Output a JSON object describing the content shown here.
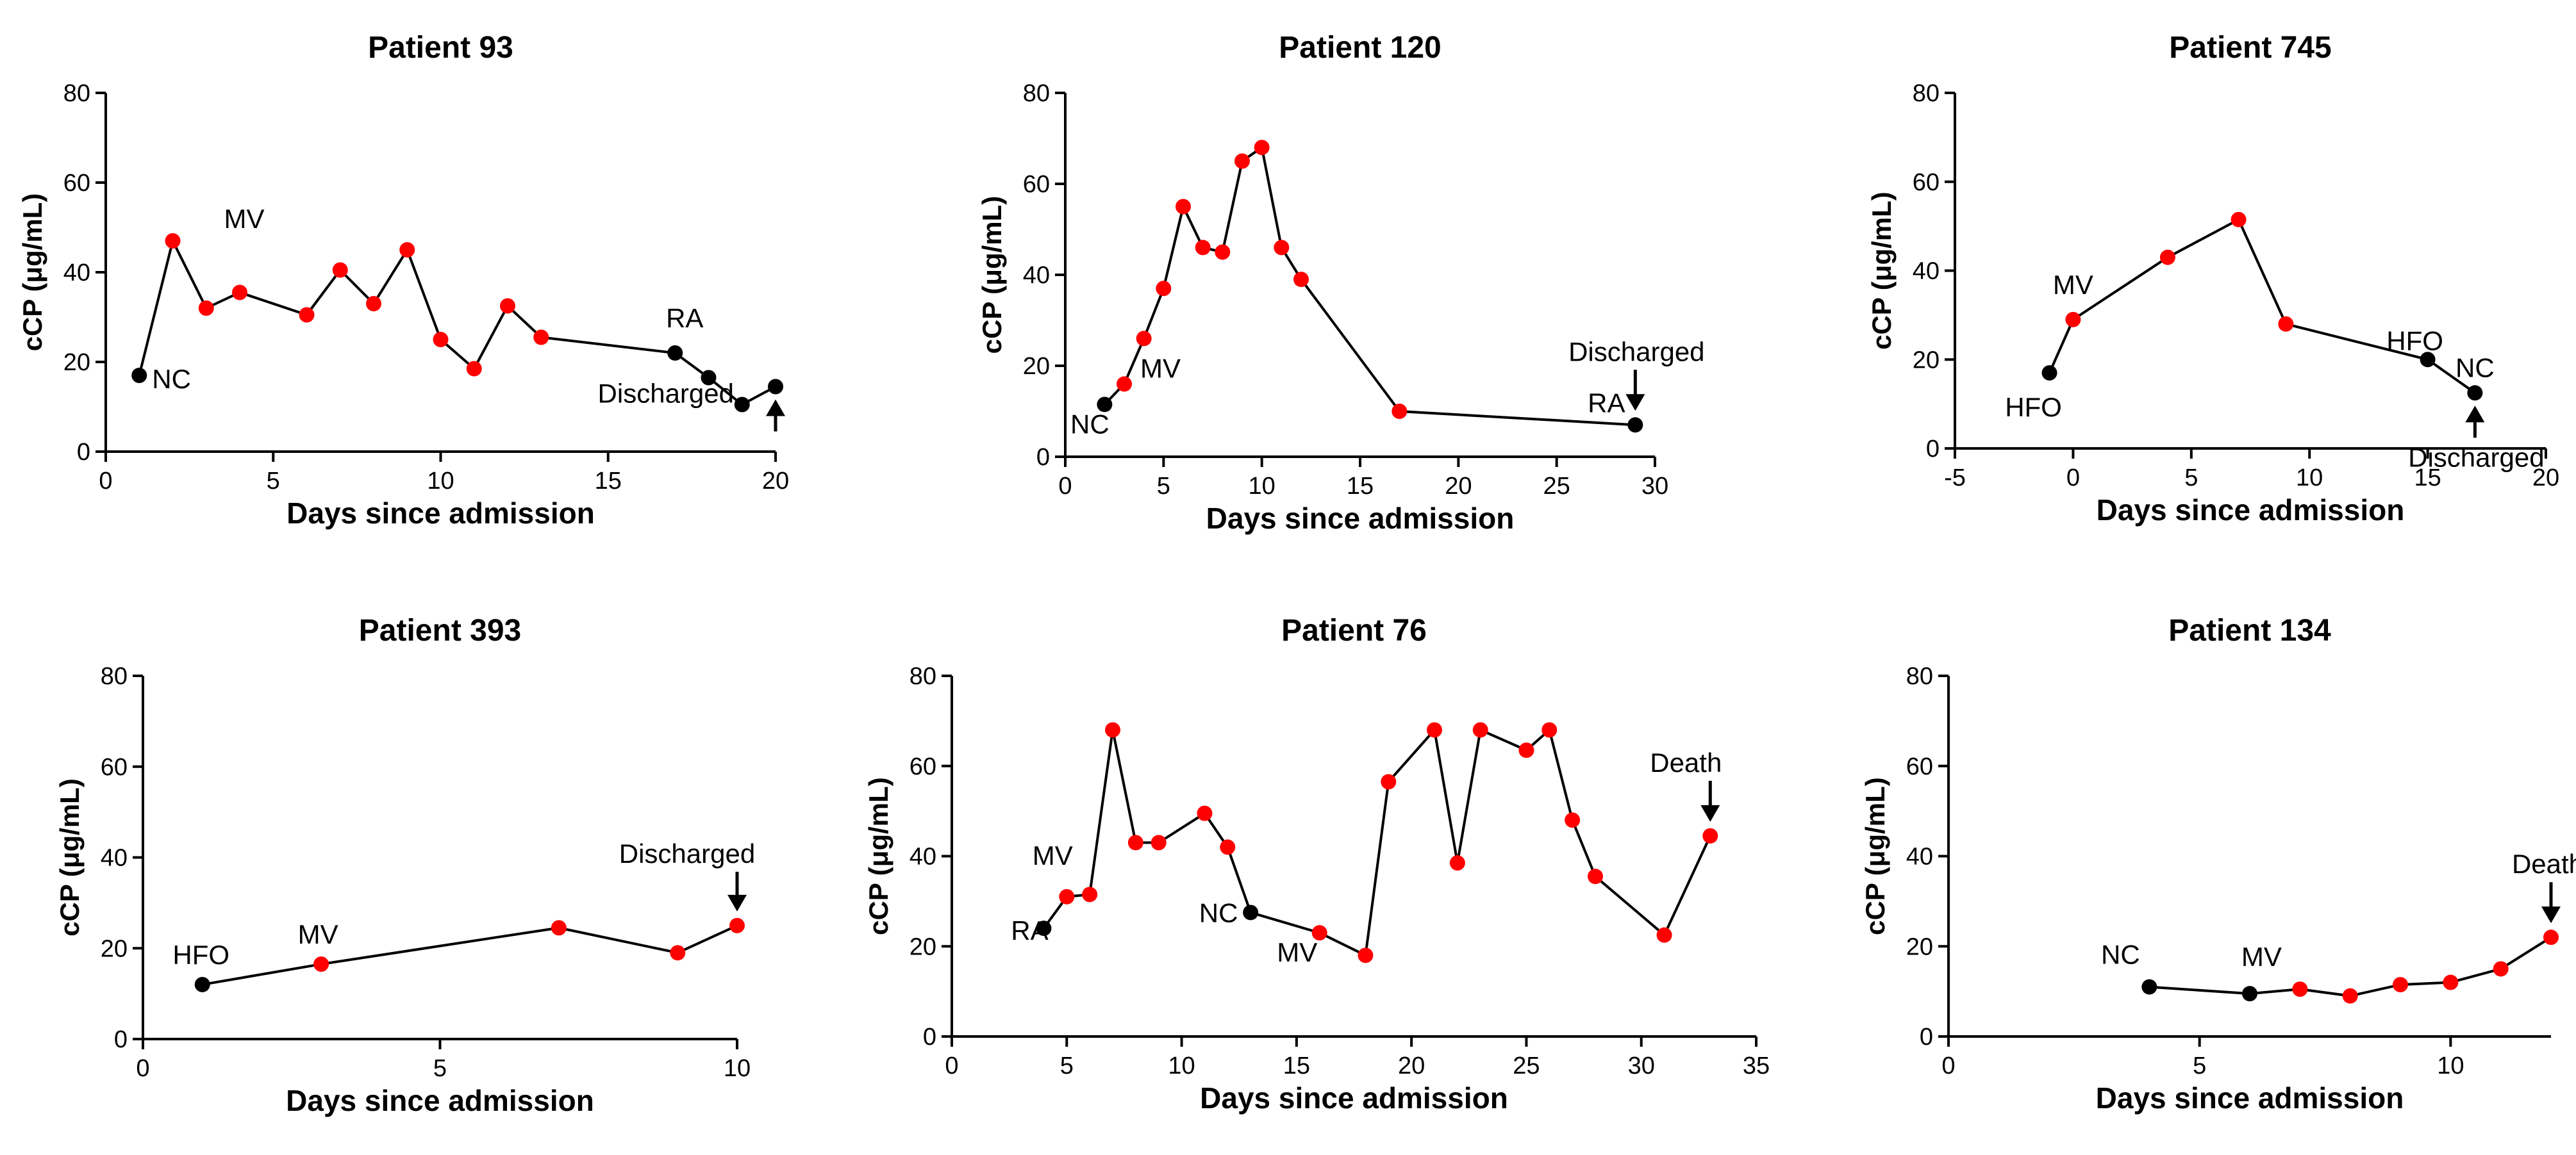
{
  "colors": {
    "axis": "#000000",
    "line": "#000000",
    "marker_red": "#ff0000",
    "marker_black": "#000000"
  },
  "chart_data": [
    {
      "type": "line",
      "title": "Patient 93",
      "xlabel": "Days since admission",
      "ylabel": "cCP (μg/mL)",
      "xlim": [
        0,
        20
      ],
      "ylim": [
        0,
        80
      ],
      "xticks": [
        0,
        5,
        10,
        15,
        20
      ],
      "yticks": [
        0,
        20,
        40,
        60,
        80
      ],
      "points": [
        {
          "x": 1,
          "y": 17,
          "color": "black"
        },
        {
          "x": 2,
          "y": 47,
          "color": "red"
        },
        {
          "x": 3,
          "y": 32,
          "color": "red"
        },
        {
          "x": 4,
          "y": 35.5,
          "color": "red"
        },
        {
          "x": 6,
          "y": 30.5,
          "color": "red"
        },
        {
          "x": 7,
          "y": 40.5,
          "color": "red"
        },
        {
          "x": 8,
          "y": 33,
          "color": "red"
        },
        {
          "x": 9,
          "y": 45,
          "color": "red"
        },
        {
          "x": 10,
          "y": 25,
          "color": "red"
        },
        {
          "x": 11,
          "y": 18.5,
          "color": "red"
        },
        {
          "x": 12,
          "y": 32.5,
          "color": "red"
        },
        {
          "x": 13,
          "y": 25.5,
          "color": "red"
        },
        {
          "x": 17,
          "y": 22,
          "color": "black"
        },
        {
          "x": 18,
          "y": 16.5,
          "color": "black"
        },
        {
          "x": 19,
          "y": 10.5,
          "color": "black"
        },
        {
          "x": 20,
          "y": 14.5,
          "color": "black"
        }
      ],
      "annotations": [
        {
          "text": "NC",
          "x": 1,
          "y": 17
        },
        {
          "text": "MV",
          "x": 2,
          "y": 47
        },
        {
          "text": "RA",
          "x": 17,
          "y": 22
        },
        {
          "text": "Discharged",
          "x": 20,
          "y": 14.5,
          "arrow": "up"
        }
      ]
    },
    {
      "type": "line",
      "title": "Patient 120",
      "xlabel": "Days since admission",
      "ylabel": "cCP (μg/mL)",
      "xlim": [
        0,
        30
      ],
      "ylim": [
        0,
        80
      ],
      "xticks": [
        0,
        5,
        10,
        15,
        20,
        25,
        30
      ],
      "yticks": [
        0,
        20,
        40,
        60,
        80
      ],
      "points": [
        {
          "x": 2,
          "y": 11.5,
          "color": "black"
        },
        {
          "x": 3,
          "y": 16,
          "color": "red"
        },
        {
          "x": 4,
          "y": 26,
          "color": "red"
        },
        {
          "x": 5,
          "y": 37,
          "color": "red"
        },
        {
          "x": 6,
          "y": 55,
          "color": "red"
        },
        {
          "x": 7,
          "y": 46,
          "color": "red"
        },
        {
          "x": 8,
          "y": 45,
          "color": "red"
        },
        {
          "x": 9,
          "y": 65,
          "color": "red"
        },
        {
          "x": 10,
          "y": 68,
          "color": "red"
        },
        {
          "x": 11,
          "y": 46,
          "color": "red"
        },
        {
          "x": 12,
          "y": 39,
          "color": "red"
        },
        {
          "x": 17,
          "y": 10,
          "color": "red"
        },
        {
          "x": 29,
          "y": 7,
          "color": "black"
        }
      ],
      "annotations": [
        {
          "text": "NC",
          "x": 2,
          "y": 11.5
        },
        {
          "text": "MV",
          "x": 3,
          "y": 16
        },
        {
          "text": "RA",
          "x": 29,
          "y": 7
        },
        {
          "text": "Discharged",
          "x": 29,
          "y": 7,
          "arrow": "down"
        }
      ]
    },
    {
      "type": "line",
      "title": "Patient 745",
      "xlabel": "Days since admission",
      "ylabel": "cCP (μg/mL)",
      "xlim": [
        -5,
        20
      ],
      "ylim": [
        0,
        80
      ],
      "xticks": [
        -5,
        0,
        5,
        10,
        15,
        20
      ],
      "yticks": [
        0,
        20,
        40,
        60,
        80
      ],
      "points": [
        {
          "x": -1,
          "y": 17,
          "color": "black"
        },
        {
          "x": 0,
          "y": 29,
          "color": "red"
        },
        {
          "x": 4,
          "y": 43,
          "color": "red"
        },
        {
          "x": 7,
          "y": 51.5,
          "color": "red"
        },
        {
          "x": 9,
          "y": 28,
          "color": "red"
        },
        {
          "x": 15,
          "y": 20,
          "color": "black"
        },
        {
          "x": 17,
          "y": 12.5,
          "color": "black"
        }
      ],
      "annotations": [
        {
          "text": "HFO",
          "x": -1,
          "y": 17
        },
        {
          "text": "MV",
          "x": 0,
          "y": 29
        },
        {
          "text": "HFO",
          "x": 15,
          "y": 20
        },
        {
          "text": "NC",
          "x": 17,
          "y": 12.5
        },
        {
          "text": "Discharged",
          "x": 17,
          "y": 12.5,
          "arrow": "up"
        }
      ]
    },
    {
      "type": "line",
      "title": "Patient 393",
      "xlabel": "Days since admission",
      "ylabel": "cCP (μg/mL)",
      "xlim": [
        0,
        10
      ],
      "ylim": [
        0,
        80
      ],
      "xticks": [
        0,
        5,
        10
      ],
      "yticks": [
        0,
        20,
        40,
        60,
        80
      ],
      "points": [
        {
          "x": 1,
          "y": 12,
          "color": "black"
        },
        {
          "x": 3,
          "y": 16.5,
          "color": "red"
        },
        {
          "x": 7,
          "y": 24.5,
          "color": "red"
        },
        {
          "x": 9,
          "y": 19,
          "color": "red"
        },
        {
          "x": 10,
          "y": 25,
          "color": "red"
        }
      ],
      "annotations": [
        {
          "text": "HFO",
          "x": 1,
          "y": 12
        },
        {
          "text": "MV",
          "x": 3,
          "y": 16.5
        },
        {
          "text": "Discharged",
          "x": 10,
          "y": 25,
          "arrow": "down"
        }
      ]
    },
    {
      "type": "line",
      "title": "Patient 76",
      "xlabel": "Days since admission",
      "ylabel": "cCP (μg/mL)",
      "xlim": [
        0,
        35
      ],
      "ylim": [
        0,
        80
      ],
      "xticks": [
        0,
        5,
        10,
        15,
        20,
        25,
        30,
        35
      ],
      "yticks": [
        0,
        20,
        40,
        60,
        80
      ],
      "points": [
        {
          "x": 4,
          "y": 24,
          "color": "black"
        },
        {
          "x": 5,
          "y": 31,
          "color": "red"
        },
        {
          "x": 6,
          "y": 31.5,
          "color": "red"
        },
        {
          "x": 7,
          "y": 68,
          "color": "red"
        },
        {
          "x": 8,
          "y": 43,
          "color": "red"
        },
        {
          "x": 9,
          "y": 43,
          "color": "red"
        },
        {
          "x": 11,
          "y": 49.5,
          "color": "red"
        },
        {
          "x": 12,
          "y": 42,
          "color": "red"
        },
        {
          "x": 13,
          "y": 27.5,
          "color": "black"
        },
        {
          "x": 16,
          "y": 23,
          "color": "red"
        },
        {
          "x": 18,
          "y": 18,
          "color": "red"
        },
        {
          "x": 19,
          "y": 56.5,
          "color": "red"
        },
        {
          "x": 21,
          "y": 68,
          "color": "red"
        },
        {
          "x": 22,
          "y": 38.5,
          "color": "red"
        },
        {
          "x": 23,
          "y": 68,
          "color": "red"
        },
        {
          "x": 25,
          "y": 63.5,
          "color": "red"
        },
        {
          "x": 26,
          "y": 68,
          "color": "red"
        },
        {
          "x": 27,
          "y": 48,
          "color": "red"
        },
        {
          "x": 28,
          "y": 35.5,
          "color": "red"
        },
        {
          "x": 31,
          "y": 22.5,
          "color": "red"
        },
        {
          "x": 33,
          "y": 44.5,
          "color": "red"
        }
      ],
      "annotations": [
        {
          "text": "RA",
          "x": 4,
          "y": 24
        },
        {
          "text": "MV",
          "x": 5,
          "y": 31
        },
        {
          "text": "NC",
          "x": 13,
          "y": 27.5
        },
        {
          "text": "MV",
          "x": 16,
          "y": 23
        },
        {
          "text": "Death",
          "x": 33,
          "y": 44.5,
          "arrow": "down"
        }
      ]
    },
    {
      "type": "line",
      "title": "Patient 134",
      "xlabel": "Days since admission",
      "ylabel": "cCP (μg/mL)",
      "xlim": [
        0,
        12
      ],
      "ylim": [
        0,
        80
      ],
      "xticks": [
        0,
        5,
        10
      ],
      "yticks": [
        0,
        20,
        40,
        60,
        80
      ],
      "points": [
        {
          "x": 4,
          "y": 11,
          "color": "black"
        },
        {
          "x": 6,
          "y": 9.5,
          "color": "black"
        },
        {
          "x": 7,
          "y": 10.5,
          "color": "red"
        },
        {
          "x": 8,
          "y": 9,
          "color": "red"
        },
        {
          "x": 9,
          "y": 11.5,
          "color": "red"
        },
        {
          "x": 10,
          "y": 12,
          "color": "red"
        },
        {
          "x": 11,
          "y": 15,
          "color": "red"
        },
        {
          "x": 12,
          "y": 22,
          "color": "red"
        }
      ],
      "annotations": [
        {
          "text": "NC",
          "x": 4,
          "y": 11
        },
        {
          "text": "MV",
          "x": 7,
          "y": 10.5
        },
        {
          "text": "Death",
          "x": 12,
          "y": 22,
          "arrow": "down"
        }
      ]
    }
  ]
}
